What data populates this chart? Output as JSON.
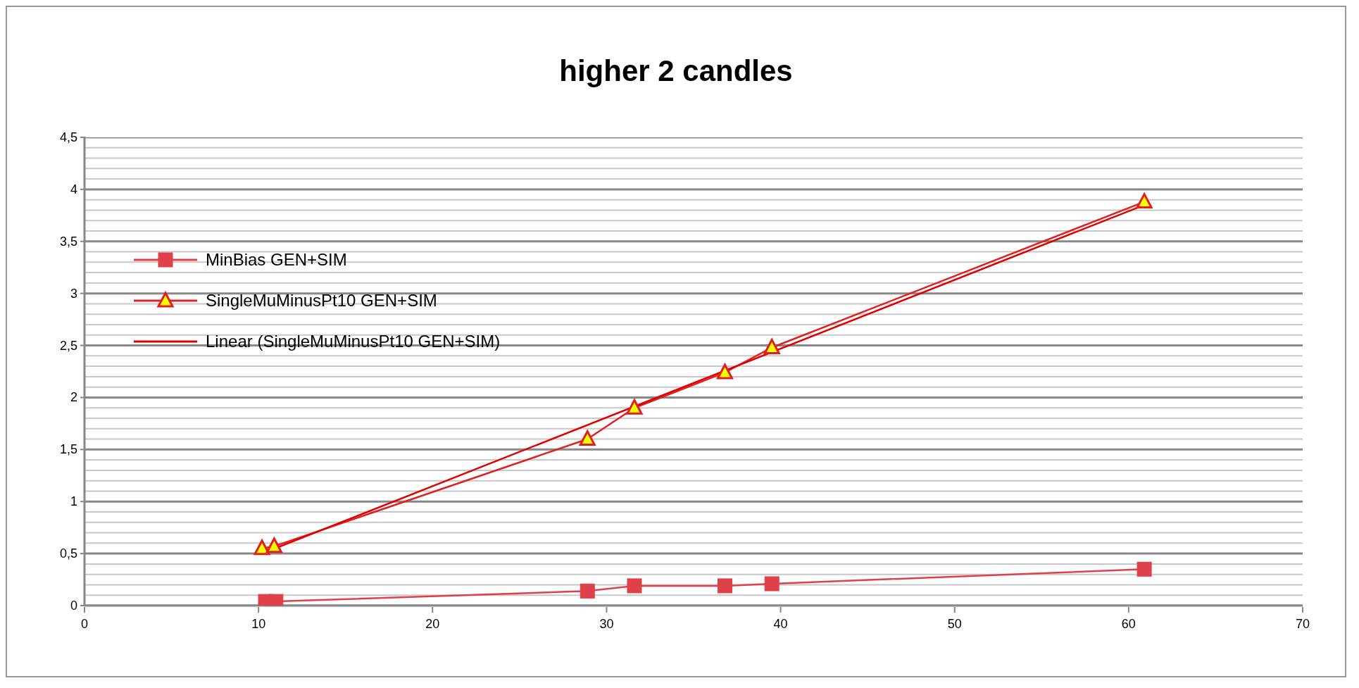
{
  "chart_data": {
    "type": "line",
    "title": "higher 2 candles",
    "series": [
      {
        "name": "MinBias GEN+SIM",
        "color": "#e0404a",
        "marker": "square",
        "x": [
          10.4,
          11,
          28.9,
          31.6,
          36.8,
          39.5,
          60.9
        ],
        "values": [
          0.04,
          0.04,
          0.14,
          0.19,
          0.19,
          0.21,
          0.35
        ]
      },
      {
        "name": "SingleMuMinusPt10 GEN+SIM",
        "color": "#e02020",
        "marker": "triangle",
        "x": [
          10.2,
          10.9,
          28.9,
          31.6,
          36.8,
          39.5,
          60.9
        ],
        "values": [
          0.55,
          0.57,
          1.6,
          1.9,
          2.24,
          2.48,
          3.88
        ]
      },
      {
        "name": "Linear (SingleMuMinusPt10 GEN+SIM)",
        "color": "#e00000",
        "marker": "none",
        "x": [
          10.2,
          60.9
        ],
        "values": [
          0.5,
          3.85
        ]
      }
    ],
    "xlim": [
      0,
      70
    ],
    "xticks": [
      0,
      10,
      20,
      30,
      40,
      50,
      60,
      70
    ],
    "ylim": [
      0,
      4.5
    ],
    "yticks": [
      0,
      {
        "value": 0.1,
        "label": null
      },
      {
        "value": 0.2,
        "label": null
      },
      {
        "value": 0.3,
        "label": null
      },
      {
        "value": 0.4,
        "label": null
      },
      {
        "value": 0.5,
        "label": "0,5"
      },
      {
        "value": 0.6,
        "label": null
      },
      {
        "value": 0.7,
        "label": null
      },
      {
        "value": 0.8,
        "label": null
      },
      {
        "value": 0.9,
        "label": null
      },
      1,
      {
        "value": 1.1,
        "label": null
      },
      {
        "value": 1.2,
        "label": null
      },
      {
        "value": 1.3,
        "label": null
      },
      {
        "value": 1.4,
        "label": null
      },
      {
        "value": 1.5,
        "label": "1,5"
      },
      {
        "value": 1.6,
        "label": null
      },
      {
        "value": 1.7,
        "label": null
      },
      {
        "value": 1.8,
        "label": null
      },
      {
        "value": 1.9,
        "label": null
      },
      2,
      {
        "value": 2.1,
        "label": null
      },
      {
        "value": 2.2,
        "label": null
      },
      {
        "value": 2.3,
        "label": null
      },
      {
        "value": 2.4,
        "label": null
      },
      {
        "value": 2.5,
        "label": "2,5"
      },
      {
        "value": 2.6,
        "label": null
      },
      {
        "value": 2.7,
        "label": null
      },
      {
        "value": 2.8,
        "label": null
      },
      {
        "value": 2.9,
        "label": null
      },
      3,
      {
        "value": 3.1,
        "label": null
      },
      {
        "value": 3.2,
        "label": null
      },
      {
        "value": 3.3,
        "label": null
      },
      {
        "value": 3.4,
        "label": null
      },
      {
        "value": 3.5,
        "label": "3,5"
      },
      {
        "value": 3.6,
        "label": null
      },
      {
        "value": 3.7,
        "label": null
      },
      {
        "value": 3.8,
        "label": null
      },
      {
        "value": 3.9,
        "label": null
      },
      4,
      {
        "value": 4.1,
        "label": null
      },
      {
        "value": 4.2,
        "label": null
      },
      {
        "value": 4.3,
        "label": null
      },
      {
        "value": 4.4,
        "label": null
      },
      {
        "value": 4.5,
        "label": "4,5"
      }
    ],
    "grid": "y",
    "legend": "left",
    "line_style": "solid"
  }
}
